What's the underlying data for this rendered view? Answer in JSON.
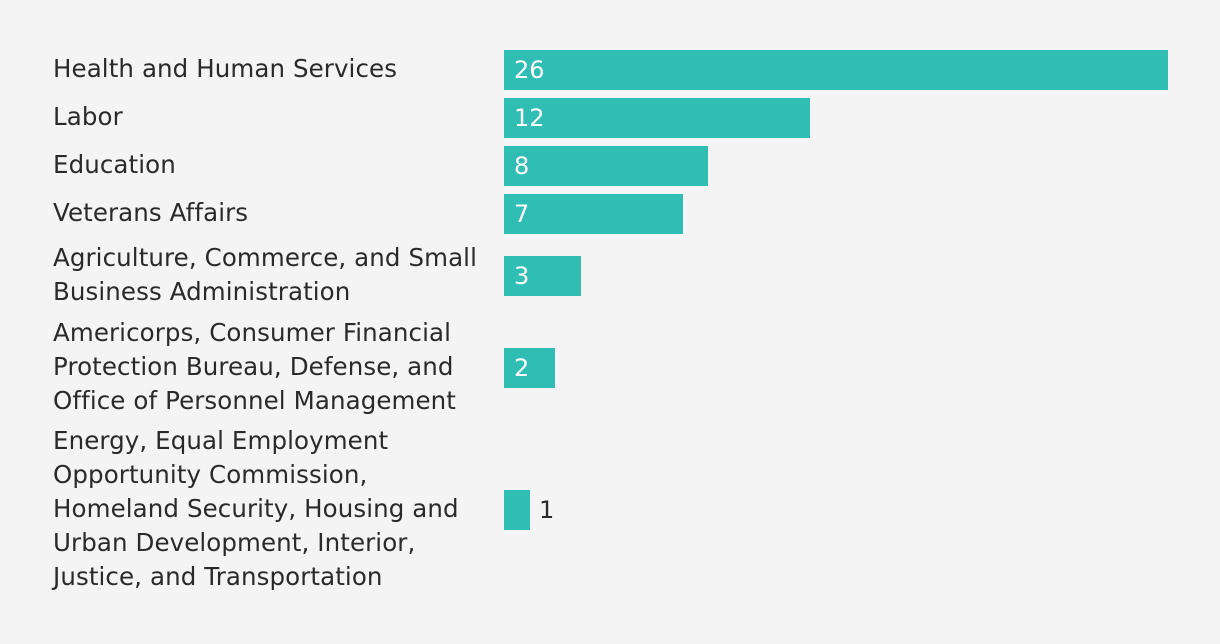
{
  "chart_data": {
    "type": "bar",
    "orientation": "horizontal",
    "title": "",
    "xlabel": "",
    "ylabel": "",
    "xlim": [
      0,
      26
    ],
    "grid": false,
    "legend": "none",
    "bar_color": "#2fbdb4",
    "categories": [
      "Health and Human Services",
      "Labor",
      "Education",
      "Veterans Affairs",
      "Agriculture, Commerce, and Small Business Administration",
      "Americorps, Consumer Financial Protection Bureau, Defense, and Office of Personnel Management",
      "Energy, Equal Employment Opportunity Commission, Homeland Security, Housing and Urban Development, Interior, Justice, and Transportation"
    ],
    "values": [
      26,
      12,
      8,
      7,
      3,
      2,
      1
    ],
    "data_labels": [
      "26",
      "12",
      "8",
      "7",
      "3",
      "2",
      "1"
    ]
  }
}
